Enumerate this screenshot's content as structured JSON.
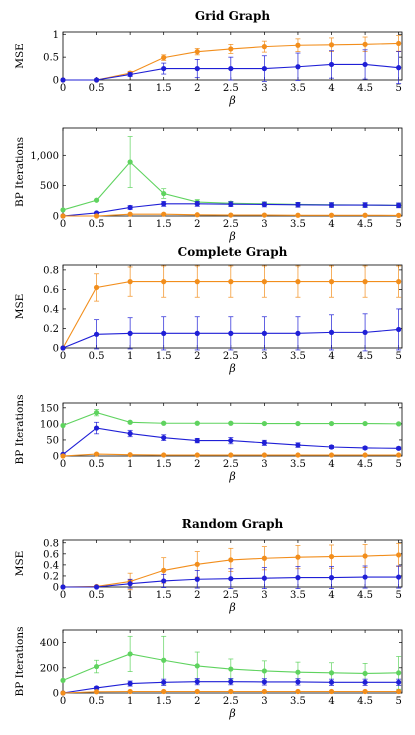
{
  "chart_data": [
    {
      "type": "line",
      "title": "Grid Graph",
      "xlabel": "β",
      "ylabel": "MSE",
      "x": [
        0,
        0.5,
        1,
        1.5,
        2,
        2.5,
        3,
        3.5,
        4,
        4.5,
        5
      ],
      "x_ticks": [
        "0",
        "0.5",
        "1",
        "1.5",
        "2",
        "2.5",
        "3",
        "3.5",
        "4",
        "4.5",
        "5"
      ],
      "xlim": [
        0,
        5.05
      ],
      "ylim": [
        0,
        1.05
      ],
      "y_ticks": [
        0,
        0.5,
        1
      ],
      "y_tick_labels": [
        "0",
        "0.5",
        "1"
      ],
      "grid": false,
      "series": [
        {
          "color": "#f28e1c",
          "values": [
            0,
            0,
            0.15,
            0.49,
            0.62,
            0.68,
            0.73,
            0.76,
            0.77,
            0.78,
            0.8
          ],
          "errors": [
            0,
            0,
            0.04,
            0.06,
            0.07,
            0.1,
            0.12,
            0.14,
            0.15,
            0.16,
            0.17
          ]
        },
        {
          "color": "#1f1fd6",
          "values": [
            0,
            0,
            0.12,
            0.25,
            0.25,
            0.25,
            0.25,
            0.29,
            0.34,
            0.34,
            0.27
          ],
          "errors": [
            0,
            0,
            0.04,
            0.12,
            0.2,
            0.25,
            0.28,
            0.3,
            0.3,
            0.32,
            0.35
          ]
        }
      ]
    },
    {
      "type": "line",
      "title": "",
      "xlabel": "β",
      "ylabel": "BP Iterations",
      "x": [
        0,
        0.5,
        1,
        1.5,
        2,
        2.5,
        3,
        3.5,
        4,
        4.5,
        5
      ],
      "x_ticks": [
        "0",
        "0.5",
        "1",
        "1.5",
        "2",
        "2.5",
        "3",
        "3.5",
        "4",
        "4.5",
        "5"
      ],
      "xlim": [
        0,
        5.05
      ],
      "ylim": [
        0,
        1450
      ],
      "y_ticks": [
        0,
        500,
        1000
      ],
      "y_tick_labels": [
        "0",
        "500",
        "1,000"
      ],
      "grid": false,
      "series": [
        {
          "color": "#5fd35f",
          "values": [
            100,
            260,
            890,
            370,
            230,
            210,
            200,
            190,
            185,
            180,
            175
          ],
          "errors": [
            0,
            0,
            420,
            80,
            40,
            30,
            30,
            30,
            30,
            30,
            30
          ]
        },
        {
          "color": "#1f1fd6",
          "values": [
            0,
            50,
            140,
            200,
            200,
            195,
            190,
            185,
            180,
            180,
            175
          ],
          "errors": [
            0,
            10,
            30,
            40,
            40,
            40,
            40,
            40,
            40,
            40,
            40
          ]
        },
        {
          "color": "#f28e1c",
          "values": [
            0,
            0,
            30,
            30,
            20,
            15,
            15,
            12,
            12,
            12,
            10
          ],
          "errors": [
            0,
            0,
            5,
            5,
            5,
            5,
            5,
            5,
            5,
            5,
            5
          ]
        }
      ]
    },
    {
      "type": "line",
      "title": "Complete Graph",
      "xlabel": "β",
      "ylabel": "MSE",
      "x": [
        0,
        0.5,
        1,
        1.5,
        2,
        2.5,
        3,
        3.5,
        4,
        4.5,
        5
      ],
      "x_ticks": [
        "0",
        "0.5",
        "1",
        "1.5",
        "2",
        "2.5",
        "3",
        "3.5",
        "4",
        "4.5",
        "5"
      ],
      "xlim": [
        0,
        5.05
      ],
      "ylim": [
        0,
        0.85
      ],
      "y_ticks": [
        0,
        0.2,
        0.4,
        0.6,
        0.8
      ],
      "y_tick_labels": [
        "0",
        "0.2",
        "0.4",
        "0.6",
        "0.8"
      ],
      "grid": false,
      "series": [
        {
          "color": "#f28e1c",
          "values": [
            0,
            0.62,
            0.68,
            0.68,
            0.68,
            0.68,
            0.68,
            0.68,
            0.68,
            0.68,
            0.68
          ],
          "errors": [
            0,
            0.14,
            0.15,
            0.16,
            0.16,
            0.16,
            0.16,
            0.16,
            0.16,
            0.16,
            0.16
          ]
        },
        {
          "color": "#1f1fd6",
          "values": [
            0,
            0.14,
            0.15,
            0.15,
            0.15,
            0.15,
            0.15,
            0.15,
            0.16,
            0.16,
            0.19
          ],
          "errors": [
            0,
            0.15,
            0.16,
            0.17,
            0.17,
            0.17,
            0.17,
            0.17,
            0.18,
            0.19,
            0.21
          ]
        }
      ]
    },
    {
      "type": "line",
      "title": "",
      "xlabel": "β",
      "ylabel": "BP Iterations",
      "x": [
        0,
        0.5,
        1,
        1.5,
        2,
        2.5,
        3,
        3.5,
        4,
        4.5,
        5
      ],
      "x_ticks": [
        "0",
        "0.5",
        "1",
        "1.5",
        "2",
        "2.5",
        "3",
        "3.5",
        "4",
        "4.5",
        "5"
      ],
      "xlim": [
        0,
        5.05
      ],
      "ylim": [
        0,
        165
      ],
      "y_ticks": [
        0,
        50,
        100,
        150
      ],
      "y_tick_labels": [
        "0",
        "50",
        "100",
        "150"
      ],
      "grid": false,
      "series": [
        {
          "color": "#5fd35f",
          "values": [
            95,
            135,
            105,
            102,
            102,
            102,
            101,
            101,
            101,
            101,
            100
          ],
          "errors": [
            0,
            10,
            3,
            2,
            2,
            2,
            2,
            2,
            2,
            2,
            2
          ]
        },
        {
          "color": "#1f1fd6",
          "values": [
            5,
            87,
            70,
            57,
            48,
            48,
            41,
            34,
            28,
            25,
            24
          ],
          "errors": [
            0,
            18,
            10,
            9,
            7,
            10,
            8,
            7,
            5,
            4,
            4
          ]
        },
        {
          "color": "#f28e1c",
          "values": [
            0,
            6,
            4,
            3,
            3,
            3,
            3,
            3,
            3,
            3,
            3
          ],
          "errors": [
            0,
            2,
            1,
            1,
            1,
            1,
            1,
            1,
            1,
            1,
            1
          ]
        }
      ]
    },
    {
      "type": "line",
      "title": "Random Graph",
      "xlabel": "β",
      "ylabel": "MSE",
      "x": [
        0,
        0.5,
        1,
        1.5,
        2,
        2.5,
        3,
        3.5,
        4,
        4.5,
        5
      ],
      "x_ticks": [
        "0",
        "0.5",
        "1",
        "1.5",
        "2",
        "2.5",
        "3",
        "3.5",
        "4",
        "4.5",
        "5"
      ],
      "xlim": [
        0,
        5.05
      ],
      "ylim": [
        0,
        0.85
      ],
      "y_ticks": [
        0,
        0.2,
        0.4,
        0.6,
        0.8
      ],
      "y_tick_labels": [
        "0",
        "0.2",
        "0.4",
        "0.6",
        "0.8"
      ],
      "grid": false,
      "series": [
        {
          "color": "#f28e1c",
          "values": [
            0,
            0.01,
            0.1,
            0.3,
            0.41,
            0.49,
            0.52,
            0.54,
            0.55,
            0.56,
            0.58
          ],
          "errors": [
            0,
            0.01,
            0.15,
            0.23,
            0.23,
            0.21,
            0.21,
            0.21,
            0.21,
            0.21,
            0.21
          ]
        },
        {
          "color": "#1f1fd6",
          "values": [
            0,
            0,
            0.06,
            0.11,
            0.14,
            0.15,
            0.16,
            0.17,
            0.17,
            0.18,
            0.18
          ],
          "errors": [
            0,
            0,
            0.08,
            0.12,
            0.16,
            0.18,
            0.19,
            0.2,
            0.2,
            0.2,
            0.2
          ]
        }
      ]
    },
    {
      "type": "line",
      "title": "",
      "xlabel": "β",
      "ylabel": "BP Iterations",
      "x": [
        0,
        0.5,
        1,
        1.5,
        2,
        2.5,
        3,
        3.5,
        4,
        4.5,
        5
      ],
      "x_ticks": [
        "0",
        "0.5",
        "1",
        "1.5",
        "2",
        "2.5",
        "3",
        "3.5",
        "4",
        "4.5",
        "5"
      ],
      "xlim": [
        0,
        5.05
      ],
      "ylim": [
        0,
        500
      ],
      "y_ticks": [
        0,
        200,
        400
      ],
      "y_tick_labels": [
        "0",
        "200",
        "400"
      ],
      "grid": false,
      "series": [
        {
          "color": "#5fd35f",
          "values": [
            100,
            210,
            310,
            260,
            215,
            190,
            175,
            165,
            160,
            155,
            160
          ],
          "errors": [
            0,
            50,
            140,
            190,
            110,
            80,
            80,
            80,
            80,
            80,
            130
          ]
        },
        {
          "color": "#1f1fd6",
          "values": [
            0,
            40,
            75,
            85,
            90,
            90,
            88,
            88,
            85,
            85,
            85
          ],
          "errors": [
            0,
            10,
            20,
            25,
            25,
            25,
            25,
            25,
            25,
            25,
            25
          ]
        },
        {
          "color": "#f28e1c",
          "values": [
            0,
            10,
            12,
            12,
            12,
            12,
            12,
            12,
            12,
            12,
            12
          ],
          "errors": [
            0,
            3,
            3,
            3,
            3,
            3,
            3,
            3,
            3,
            3,
            3
          ]
        }
      ]
    }
  ]
}
